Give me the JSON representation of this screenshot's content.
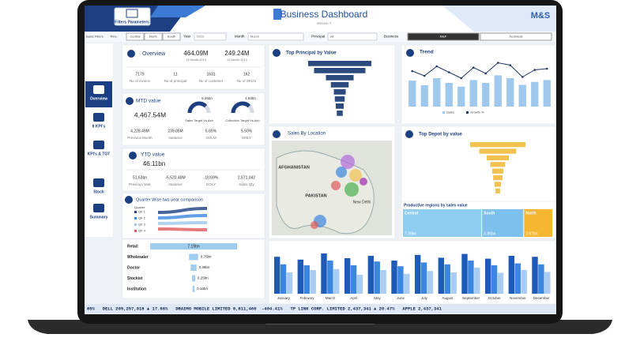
{
  "header": {
    "filters_label": "Filters Parameters",
    "title": "Business Dashboard",
    "subtitle": "Version 7",
    "logo": "M&S"
  },
  "filters": {
    "basic": "Basic Filters",
    "time_label": "Time:",
    "regions": [
      "Central",
      "North",
      "South"
    ],
    "year_label": "Year",
    "year": "2013",
    "month_label": "Month",
    "month": "March",
    "principal_label": "Principal",
    "principal": "All",
    "business_label": "Business",
    "business": [
      "M&P",
      "Technical"
    ]
  },
  "nav": [
    "Overview",
    "8 KPI's",
    "KPI's & TGT",
    "Stock",
    "Summary"
  ],
  "overview": {
    "title": "Overview",
    "kpis": [
      {
        "value": "464.09M",
        "label": "13 Month-2013"
      },
      {
        "value": "249.24M",
        "label": "13 Month-2013"
      }
    ],
    "stats": [
      {
        "value": "7179",
        "label": "No of invoice"
      },
      {
        "value": "11",
        "label": "No of principal"
      },
      {
        "value": "1631",
        "label": "No of customer"
      },
      {
        "value": "162",
        "label": "No of SKU's"
      }
    ]
  },
  "mtd": {
    "title": "MTD value",
    "value": "4,467.54M",
    "gauges": [
      {
        "value": "5.25bn",
        "label": "Sales Target Vs Ach"
      },
      {
        "value": "4.83bn",
        "label": "Collection Target Vs Ach"
      }
    ],
    "stats": [
      {
        "value": "4,228.49M",
        "label": "Previous Month"
      },
      {
        "value": "239.05M",
        "label": "Variance"
      },
      {
        "value": "5.65%",
        "label": "GOLM"
      },
      {
        "value": "5.50%",
        "label": "SMLY"
      }
    ]
  },
  "ytd": {
    "title": "YTD value",
    "value": "46.11bn",
    "stats": [
      {
        "value": "51.63bn",
        "label": "Previous Year"
      },
      {
        "value": "-5,520.48M",
        "label": "Variance"
      },
      {
        "value": "-10.69%",
        "label": "GOLY"
      },
      {
        "value": "2,671,042",
        "label": "Sales Qty"
      }
    ]
  },
  "quarter": {
    "title": "Quarter Wise two-year comparison",
    "legend_title": "Quarter",
    "legend": [
      "Qtr 1",
      "Qtr 2",
      "Qtr 3",
      "Qtr 4"
    ]
  },
  "map": {
    "title": "Sales By Location",
    "labels": [
      "AFGHANISTAN",
      "PAKISTAN",
      "New Delhi"
    ]
  },
  "chart_data": [
    {
      "type": "funnel",
      "title": "Top Principal by Value",
      "categories": [
        null,
        null,
        null,
        null,
        null,
        null,
        null,
        null
      ],
      "values": [
        3.2,
        2.6,
        1.4,
        0.9,
        0.6,
        0.5,
        0.4,
        0.3
      ],
      "xlim": [
        0,
        3.2
      ],
      "color": "#2b4a7e"
    },
    {
      "type": "combo",
      "title": "Trend",
      "categories": [
        null,
        null,
        null,
        null,
        null,
        null,
        null,
        null,
        null,
        null,
        null,
        null
      ],
      "series": [
        {
          "name": "Sales",
          "color": "#9ec8ec",
          "values": [
            0.55,
            0.45,
            0.6,
            0.5,
            0.42,
            0.56,
            0.5,
            0.66,
            0.6,
            0.46,
            0.52,
            0.56
          ]
        },
        {
          "name": "Growth %",
          "color": "#1f3864",
          "axis": "y2",
          "values": [
            10,
            6,
            14,
            9,
            4,
            13,
            8,
            17,
            15,
            5,
            11,
            12
          ]
        }
      ],
      "ylim": [
        0,
        1
      ],
      "y2lim": [
        -20,
        20
      ]
    },
    {
      "type": "funnel",
      "title": "Top Depot by value",
      "categories": [
        null,
        null,
        null,
        null,
        null,
        null,
        null,
        null
      ],
      "values": [
        3.0,
        2.0,
        1.2,
        0.8,
        0.6,
        0.5,
        0.35,
        0.25
      ],
      "xlim": [
        0,
        3.0
      ],
      "color": "#f2c14e"
    },
    {
      "type": "treemap",
      "title": "Productive regions by sales value",
      "categories": [
        "Central",
        "South",
        "North"
      ],
      "values": [
        7.28,
        3.86,
        2.67
      ],
      "value_labels": [
        "7.28bn",
        "3.86bn",
        "2.67bn"
      ],
      "colors": [
        "#8dcdf2",
        "#7cc0ee",
        "#f5b731"
      ]
    },
    {
      "type": "bar",
      "categories": [
        "January",
        "February",
        "March",
        "April",
        "May",
        "June",
        "July",
        "August",
        "September",
        "October",
        "November",
        "December"
      ],
      "series": [
        {
          "name": null,
          "color": "#1e5bb8",
          "values": [
            0.78,
            0.72,
            0.85,
            0.75,
            0.8,
            0.7,
            0.82,
            0.76,
            0.84,
            0.74,
            0.8,
            0.78
          ]
        },
        {
          "name": null,
          "color": "#3a86e0",
          "values": [
            0.62,
            0.6,
            0.7,
            0.6,
            0.68,
            0.58,
            0.66,
            0.62,
            0.7,
            0.6,
            0.64,
            0.62
          ]
        },
        {
          "name": null,
          "color": "#a9cdf2",
          "values": [
            0.45,
            0.5,
            0.52,
            0.4,
            0.5,
            0.42,
            0.48,
            0.45,
            0.55,
            0.44,
            0.5,
            0.46
          ]
        }
      ],
      "ylim": [
        0,
        1
      ]
    },
    {
      "type": "hbar",
      "categories": [
        "Retail",
        "Wholesaler",
        "Doctor",
        "Stockist",
        "Institution"
      ],
      "values": [
        7.19,
        0.75,
        0.48,
        0.25,
        0.16
      ],
      "value_labels": [
        "7.19bn",
        "0.75bn",
        "0.48bn",
        "0.25bn",
        "0.16bn"
      ],
      "xlim": [
        0,
        7.19
      ],
      "color": "#9fcdf0"
    }
  ],
  "ticker": "85%   DELL 209,257,018 ▲ 17.66%   DRAIMO MOBILE LIMITED 8,811,460  -404.41%   TP LINK CORP. LIMITED 2,437,341 ▲ 20.47%   APPLE 2,437,341"
}
